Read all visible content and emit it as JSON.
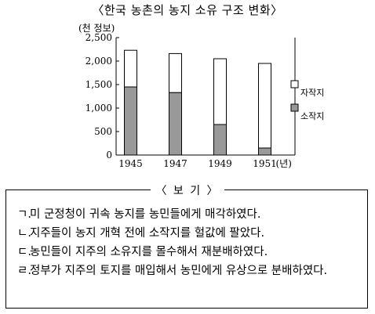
{
  "title": "〈한국 농촌의 농지 소유 구조 변화〉",
  "chart_data": {
    "type": "bar",
    "stacked": true,
    "categories": [
      "1945",
      "1947",
      "1949",
      "1951"
    ],
    "x_unit": "(년)",
    "ylabel": "(천 정보)",
    "ylim": [
      0,
      2500
    ],
    "yticks": [
      "0",
      "500",
      "1,000",
      "1,500",
      "2,000",
      "2,500"
    ],
    "grid": false,
    "legend_position": "right",
    "series": [
      {
        "name": "소작지",
        "values": [
          1450,
          1330,
          650,
          150
        ],
        "color": "#999999"
      },
      {
        "name": "자작지",
        "values": [
          780,
          830,
          1400,
          1800
        ],
        "color": "#ffffff"
      }
    ]
  },
  "box": {
    "title": "보 기",
    "items": [
      {
        "marker": "ㄱ.",
        "text": "미 군정청이 귀속 농지를 농민들에게 매각하였다."
      },
      {
        "marker": "ㄴ.",
        "text": "지주들이 농지 개혁 전에 소작지를 헐값에 팔았다."
      },
      {
        "marker": "ㄷ.",
        "text": "농민들이 지주의 소유지를 몰수해서 재분배하였다."
      },
      {
        "marker": "ㄹ.",
        "text": "정부가 지주의 토지를 매입해서 농민에게 유상으로 분배하였다."
      }
    ]
  }
}
